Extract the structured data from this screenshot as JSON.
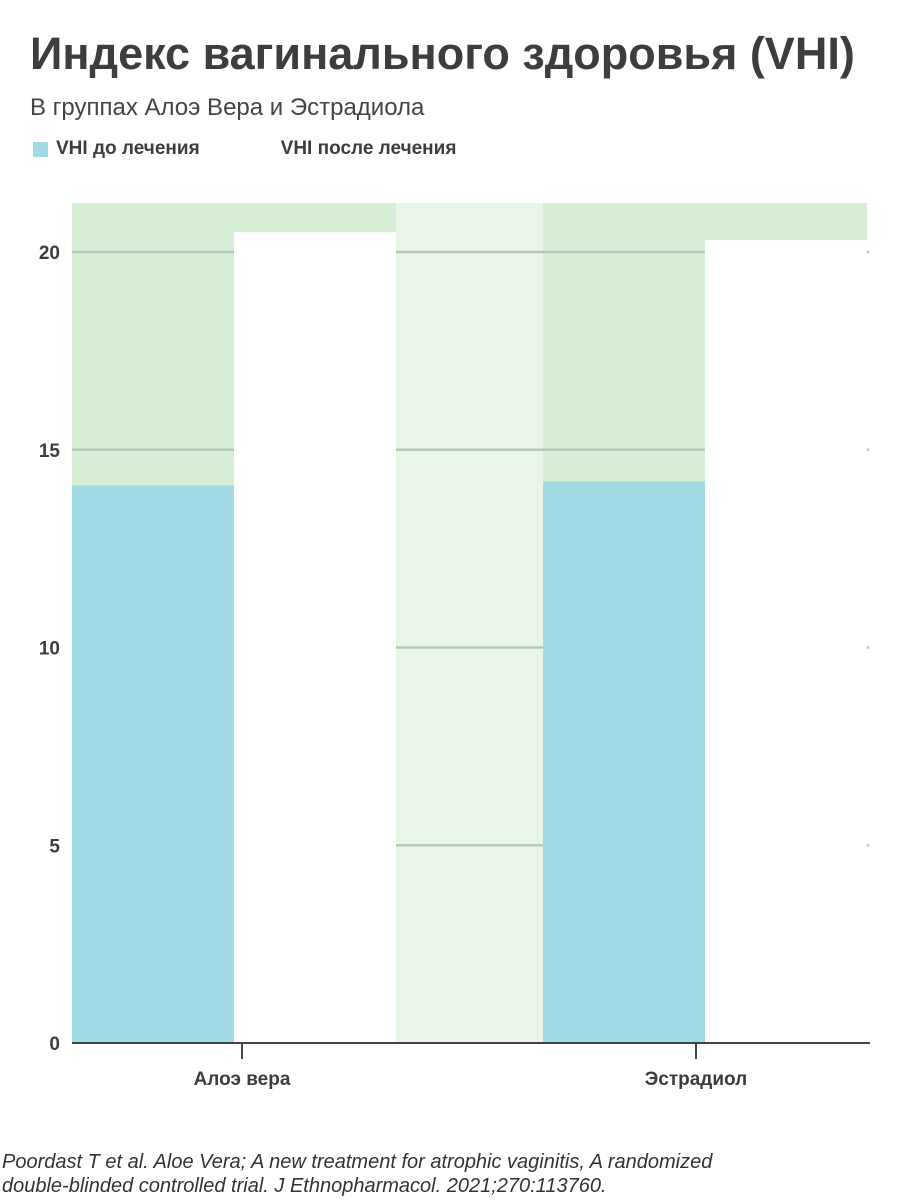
{
  "title": "Индекс вагинального здоровья (VHI)",
  "subtitle": "В группах Алоэ Вера и Эстрадиола",
  "legend": [
    {
      "label": "VHI до лечения",
      "color": "#a0dae5"
    },
    {
      "label": "VHI после лечения",
      "color": "#ffffff"
    }
  ],
  "colors": {
    "band_green": "#d6edd6",
    "band_light": "#e8f5e8",
    "grid": "#b5c9b5",
    "axis": "#444444"
  },
  "chart_data": {
    "type": "bar",
    "categories": [
      "Алоэ вера",
      "Эстрадиол"
    ],
    "series": [
      {
        "name": "VHI до лечения",
        "values": [
          14.1,
          14.2
        ]
      },
      {
        "name": "VHI после лечения",
        "values": [
          20.5,
          20.3
        ]
      }
    ],
    "ylim": [
      0,
      21.3
    ],
    "yticks": [
      0,
      5,
      10,
      15,
      20
    ],
    "grid": true,
    "legend_position": "top-left",
    "xlabel": "",
    "ylabel": ""
  },
  "source": [
    "Poordast T et al. Aloe Vera; A new treatment for atrophic vaginitis, A randomized",
    "double-blinded controlled trial. J Ethnopharmacol. 2021;270:113760."
  ]
}
